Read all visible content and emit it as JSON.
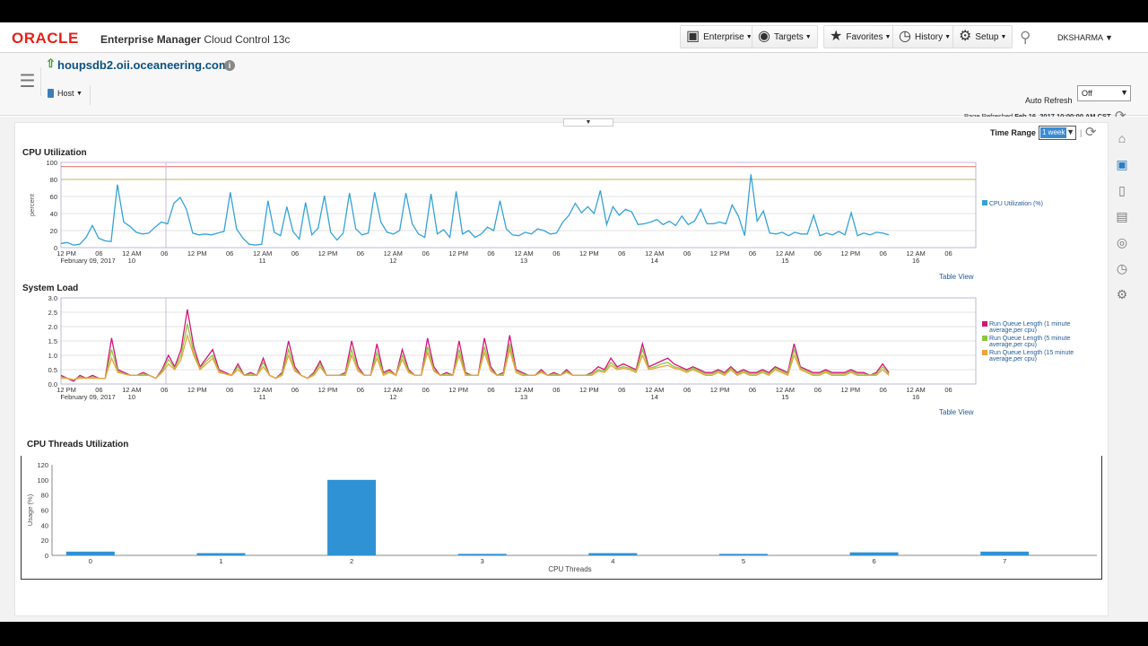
{
  "header": {
    "logo": "ORACLE",
    "product_bold": "Enterprise Manager",
    "product_rest": " Cloud Control 13c",
    "menus": [
      {
        "label": "Enterprise",
        "icon": "enterprise-icon"
      },
      {
        "label": "Targets",
        "icon": "targets-icon"
      },
      {
        "label": "Favorites",
        "icon": "star-icon"
      },
      {
        "label": "History",
        "icon": "history-icon"
      },
      {
        "label": "Setup",
        "icon": "gear-icon"
      }
    ],
    "user": "DKSHARMA"
  },
  "target": {
    "name": "houpsdb2.oii.oceaneering.com",
    "menu_label": "Host",
    "auto_refresh_label": "Auto Refresh",
    "auto_refresh_value": "Off",
    "page_refreshed_label": "Page Refreshed",
    "page_refreshed_value": "Feb 16, 2017 10:00:00 AM CST"
  },
  "controls": {
    "time_range_label": "Time Range",
    "time_range_value": "1 week"
  },
  "table_view_label": "Table View",
  "x_ticks": [
    {
      "l1": "12 PM",
      "l2": "February 09, 2017"
    },
    {
      "l1": "06",
      "l2": ""
    },
    {
      "l1": "12 AM",
      "l2": "10"
    },
    {
      "l1": "06",
      "l2": ""
    },
    {
      "l1": "12 PM",
      "l2": ""
    },
    {
      "l1": "06",
      "l2": ""
    },
    {
      "l1": "12 AM",
      "l2": "11"
    },
    {
      "l1": "06",
      "l2": ""
    },
    {
      "l1": "12 PM",
      "l2": ""
    },
    {
      "l1": "06",
      "l2": ""
    },
    {
      "l1": "12 AM",
      "l2": "12"
    },
    {
      "l1": "06",
      "l2": ""
    },
    {
      "l1": "12 PM",
      "l2": ""
    },
    {
      "l1": "06",
      "l2": ""
    },
    {
      "l1": "12 AM",
      "l2": "13"
    },
    {
      "l1": "06",
      "l2": ""
    },
    {
      "l1": "12 PM",
      "l2": ""
    },
    {
      "l1": "06",
      "l2": ""
    },
    {
      "l1": "12 AM",
      "l2": "14"
    },
    {
      "l1": "06",
      "l2": ""
    },
    {
      "l1": "12 PM",
      "l2": ""
    },
    {
      "l1": "06",
      "l2": ""
    },
    {
      "l1": "12 AM",
      "l2": "15"
    },
    {
      "l1": "06",
      "l2": ""
    },
    {
      "l1": "12 PM",
      "l2": ""
    },
    {
      "l1": "06",
      "l2": ""
    },
    {
      "l1": "12 AM",
      "l2": "16"
    },
    {
      "l1": "06",
      "l2": ""
    }
  ],
  "chart_data": [
    {
      "type": "line",
      "title": "CPU Utilization",
      "ylabel": "percent",
      "ylim": [
        0,
        100
      ],
      "yticks": [
        "0",
        "20",
        "40",
        "60",
        "80",
        "100"
      ],
      "thresholds": [
        {
          "value": 95,
          "color": "#e46a6a"
        },
        {
          "value": 80,
          "color": "#c8b25a"
        }
      ],
      "x_range_hours": [
        0,
        168
      ],
      "series": [
        {
          "name": "CPU Utilization (%)",
          "color": "#35a2d6",
          "values": [
            5,
            6,
            3,
            4,
            12,
            26,
            11,
            8,
            7,
            74,
            30,
            25,
            18,
            16,
            17,
            24,
            30,
            28,
            52,
            59,
            45,
            17,
            15,
            16,
            15,
            17,
            19,
            65,
            22,
            11,
            4,
            3,
            4,
            55,
            18,
            14,
            48,
            19,
            10,
            53,
            15,
            23,
            61,
            18,
            9,
            17,
            64,
            22,
            15,
            17,
            65,
            30,
            18,
            16,
            20,
            64,
            28,
            16,
            12,
            63,
            16,
            21,
            12,
            66,
            16,
            20,
            12,
            16,
            24,
            20,
            55,
            22,
            15,
            14,
            18,
            16,
            22,
            20,
            16,
            17,
            30,
            38,
            52,
            41,
            48,
            40,
            67,
            27,
            48,
            38,
            45,
            42,
            27,
            28,
            30,
            33,
            27,
            31,
            26,
            37,
            27,
            31,
            45,
            28,
            28,
            30,
            28,
            50,
            37,
            14,
            86,
            31,
            43,
            17,
            16,
            18,
            14,
            18,
            16,
            16,
            38,
            14,
            17,
            15,
            19,
            15,
            41,
            14,
            17,
            15,
            18,
            17,
            15
          ]
        }
      ]
    },
    {
      "type": "line",
      "title": "System Load",
      "ylabel": "",
      "ylim": [
        0,
        3
      ],
      "yticks": [
        "0.0",
        "0.5",
        "1.0",
        "1.5",
        "2.0",
        "2.5",
        "3.0"
      ],
      "x_range_hours": [
        0,
        168
      ],
      "series": [
        {
          "name": "Run Queue Length (1 minute average,per cpu)",
          "color": "#d4147a",
          "values": [
            0.3,
            0.2,
            0.1,
            0.3,
            0.2,
            0.3,
            0.2,
            0.2,
            1.6,
            0.5,
            0.4,
            0.3,
            0.3,
            0.4,
            0.3,
            0.2,
            0.5,
            1.0,
            0.6,
            1.2,
            2.6,
            1.3,
            0.6,
            0.9,
            1.2,
            0.5,
            0.4,
            0.3,
            0.7,
            0.3,
            0.4,
            0.3,
            0.9,
            0.3,
            0.2,
            0.4,
            1.5,
            0.6,
            0.3,
            0.2,
            0.4,
            0.8,
            0.3,
            0.3,
            0.3,
            0.4,
            1.5,
            0.6,
            0.3,
            0.3,
            1.4,
            0.4,
            0.5,
            0.3,
            1.2,
            0.5,
            0.3,
            0.3,
            1.6,
            0.6,
            0.3,
            0.4,
            0.3,
            1.5,
            0.4,
            0.3,
            0.3,
            1.6,
            0.6,
            0.3,
            0.4,
            1.7,
            0.5,
            0.4,
            0.3,
            0.3,
            0.5,
            0.3,
            0.4,
            0.3,
            0.5,
            0.3,
            0.3,
            0.3,
            0.4,
            0.6,
            0.5,
            0.9,
            0.6,
            0.7,
            0.6,
            0.5,
            1.4,
            0.6,
            0.7,
            0.8,
            0.9,
            0.7,
            0.6,
            0.5,
            0.6,
            0.5,
            0.4,
            0.4,
            0.5,
            0.4,
            0.6,
            0.4,
            0.5,
            0.4,
            0.4,
            0.5,
            0.4,
            0.6,
            0.5,
            0.4,
            1.4,
            0.6,
            0.5,
            0.4,
            0.4,
            0.5,
            0.4,
            0.4,
            0.4,
            0.5,
            0.4,
            0.4,
            0.3,
            0.4,
            0.7,
            0.4
          ]
        },
        {
          "name": "Run Queue Length (5 minute average,per cpu)",
          "color": "#8cc63f",
          "values": [
            0.25,
            0.2,
            0.15,
            0.25,
            0.2,
            0.25,
            0.2,
            0.2,
            1.2,
            0.45,
            0.35,
            0.3,
            0.3,
            0.35,
            0.3,
            0.2,
            0.45,
            0.85,
            0.55,
            1.0,
            2.1,
            1.1,
            0.55,
            0.8,
            1.0,
            0.45,
            0.35,
            0.3,
            0.6,
            0.3,
            0.35,
            0.3,
            0.75,
            0.3,
            0.2,
            0.35,
            1.2,
            0.5,
            0.3,
            0.2,
            0.35,
            0.7,
            0.3,
            0.3,
            0.3,
            0.35,
            1.2,
            0.5,
            0.3,
            0.3,
            1.1,
            0.35,
            0.45,
            0.3,
            1.0,
            0.45,
            0.3,
            0.3,
            1.3,
            0.5,
            0.3,
            0.35,
            0.3,
            1.2,
            0.35,
            0.3,
            0.3,
            1.3,
            0.5,
            0.3,
            0.35,
            1.4,
            0.45,
            0.35,
            0.3,
            0.3,
            0.45,
            0.3,
            0.35,
            0.3,
            0.45,
            0.3,
            0.3,
            0.3,
            0.35,
            0.5,
            0.45,
            0.75,
            0.55,
            0.6,
            0.55,
            0.45,
            1.2,
            0.55,
            0.6,
            0.7,
            0.75,
            0.6,
            0.55,
            0.45,
            0.55,
            0.45,
            0.35,
            0.35,
            0.45,
            0.35,
            0.55,
            0.35,
            0.45,
            0.35,
            0.35,
            0.45,
            0.35,
            0.55,
            0.45,
            0.35,
            1.2,
            0.55,
            0.45,
            0.35,
            0.35,
            0.45,
            0.35,
            0.35,
            0.35,
            0.45,
            0.35,
            0.35,
            0.3,
            0.35,
            0.6,
            0.35
          ]
        },
        {
          "name": "Run Queue Length (15 minute average,per cpu)",
          "color": "#f0a23b",
          "values": [
            0.2,
            0.2,
            0.15,
            0.2,
            0.2,
            0.2,
            0.2,
            0.2,
            0.9,
            0.4,
            0.35,
            0.3,
            0.3,
            0.3,
            0.3,
            0.2,
            0.4,
            0.7,
            0.5,
            0.85,
            1.7,
            1.0,
            0.5,
            0.7,
            0.9,
            0.4,
            0.35,
            0.3,
            0.5,
            0.3,
            0.3,
            0.3,
            0.6,
            0.3,
            0.2,
            0.3,
            1.0,
            0.45,
            0.3,
            0.2,
            0.3,
            0.6,
            0.3,
            0.3,
            0.3,
            0.3,
            1.0,
            0.45,
            0.3,
            0.3,
            0.9,
            0.3,
            0.4,
            0.3,
            0.85,
            0.4,
            0.3,
            0.3,
            1.1,
            0.45,
            0.3,
            0.3,
            0.3,
            1.0,
            0.3,
            0.3,
            0.3,
            1.1,
            0.45,
            0.3,
            0.3,
            1.2,
            0.4,
            0.3,
            0.3,
            0.3,
            0.4,
            0.3,
            0.3,
            0.3,
            0.4,
            0.3,
            0.3,
            0.3,
            0.3,
            0.45,
            0.4,
            0.65,
            0.5,
            0.55,
            0.5,
            0.4,
            1.0,
            0.5,
            0.55,
            0.6,
            0.65,
            0.55,
            0.5,
            0.4,
            0.5,
            0.4,
            0.3,
            0.3,
            0.4,
            0.3,
            0.5,
            0.3,
            0.4,
            0.3,
            0.3,
            0.4,
            0.3,
            0.5,
            0.4,
            0.3,
            1.0,
            0.5,
            0.4,
            0.3,
            0.3,
            0.4,
            0.3,
            0.3,
            0.3,
            0.4,
            0.3,
            0.3,
            0.3,
            0.3,
            0.5,
            0.3
          ]
        }
      ]
    },
    {
      "type": "bar",
      "title": "CPU Threads Utilization",
      "xlabel": "CPU Threads",
      "ylabel": "Usage (%)",
      "ylim": [
        0,
        120
      ],
      "yticks": [
        "0",
        "20",
        "40",
        "60",
        "80",
        "100",
        "120"
      ],
      "categories": [
        "0",
        "1",
        "2",
        "3",
        "4",
        "5",
        "6",
        "7"
      ],
      "values": [
        5,
        3,
        100,
        2,
        3,
        2,
        4,
        5
      ],
      "color": "#2f92d5"
    }
  ],
  "side_icons": [
    "home-icon",
    "cpu-icon",
    "server-icon",
    "storage-icon",
    "network-icon",
    "clock-icon",
    "settings-icon"
  ]
}
